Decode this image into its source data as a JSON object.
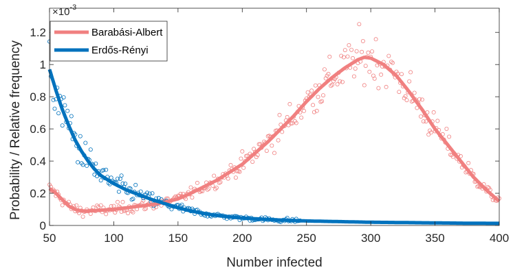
{
  "chart_data": {
    "type": "scatter",
    "xlabel": "Number infected",
    "ylabel": "Probability / Relative frequency",
    "xlim": [
      50,
      400
    ],
    "ylim": [
      0,
      1.35
    ],
    "y_scale_label": "×10",
    "y_scale_exponent": "-3",
    "x_ticks": [
      50,
      100,
      150,
      200,
      250,
      300,
      350,
      400
    ],
    "x_tick_labels": [
      "50",
      "100",
      "150",
      "200",
      "250",
      "300",
      "350",
      "400"
    ],
    "y_ticks": [
      0,
      0.2,
      0.4,
      0.6,
      0.8,
      1,
      1.2
    ],
    "y_tick_labels": [
      "0",
      "0.2",
      "0.4",
      "0.6",
      "0.8",
      "1",
      "1.2"
    ],
    "grid": false,
    "legend_position": "top-left",
    "series": [
      {
        "name": "Barabási-Albert",
        "color": "#F08080",
        "curve_x": [
          50,
          55,
          60,
          65,
          70,
          75,
          80,
          90,
          100,
          110,
          120,
          130,
          140,
          150,
          160,
          170,
          180,
          190,
          200,
          210,
          220,
          230,
          240,
          250,
          260,
          270,
          280,
          290,
          295,
          300,
          310,
          320,
          330,
          340,
          350,
          360,
          370,
          380,
          390,
          400
        ],
        "curve_y": [
          0.23,
          0.2,
          0.16,
          0.12,
          0.1,
          0.09,
          0.09,
          0.095,
          0.1,
          0.11,
          0.12,
          0.13,
          0.145,
          0.165,
          0.2,
          0.24,
          0.28,
          0.33,
          0.38,
          0.45,
          0.52,
          0.6,
          0.68,
          0.77,
          0.85,
          0.92,
          0.98,
          1.03,
          1.045,
          1.04,
          1.0,
          0.93,
          0.83,
          0.72,
          0.6,
          0.5,
          0.4,
          0.3,
          0.22,
          0.15
        ],
        "scatter_noise": 0.13
      },
      {
        "name": "Erdős-Rényi",
        "color": "#0072BD",
        "curve_x": [
          50,
          55,
          60,
          65,
          70,
          75,
          80,
          85,
          90,
          100,
          110,
          120,
          130,
          140,
          150,
          160,
          170,
          180,
          190,
          200,
          225,
          250,
          275,
          300,
          325,
          350,
          375,
          400
        ],
        "curve_y": [
          0.97,
          0.84,
          0.72,
          0.62,
          0.53,
          0.46,
          0.4,
          0.35,
          0.31,
          0.26,
          0.22,
          0.19,
          0.16,
          0.135,
          0.11,
          0.09,
          0.075,
          0.062,
          0.053,
          0.046,
          0.035,
          0.028,
          0.024,
          0.02,
          0.018,
          0.016,
          0.014,
          0.013
        ],
        "scatter_x_max": 245,
        "scatter_noise": 0.22
      }
    ]
  }
}
